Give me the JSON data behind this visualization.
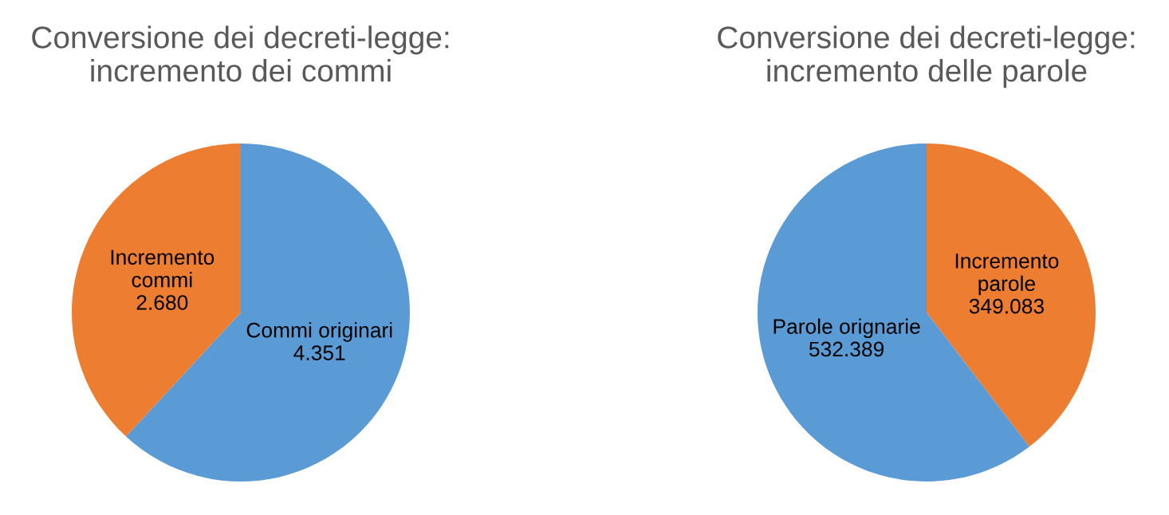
{
  "chart_data": [
    {
      "type": "pie",
      "title": "Conversione dei decreti-legge:\nincremento dei commi",
      "categories": [
        "Commi originari",
        "Incremento\ncommi"
      ],
      "values": [
        4351,
        2680
      ],
      "value_labels": [
        "4.351",
        "2.680"
      ],
      "colors": [
        "#5b9bd5",
        "#ed7d31"
      ]
    },
    {
      "type": "pie",
      "title": "Conversione dei decreti-legge:\nincremento delle parole",
      "categories": [
        "Incremento\nparole",
        "Parole orignarie"
      ],
      "values": [
        349083,
        532389
      ],
      "value_labels": [
        "349.083",
        "532.389"
      ],
      "colors": [
        "#ed7d31",
        "#5b9bd5"
      ]
    }
  ]
}
